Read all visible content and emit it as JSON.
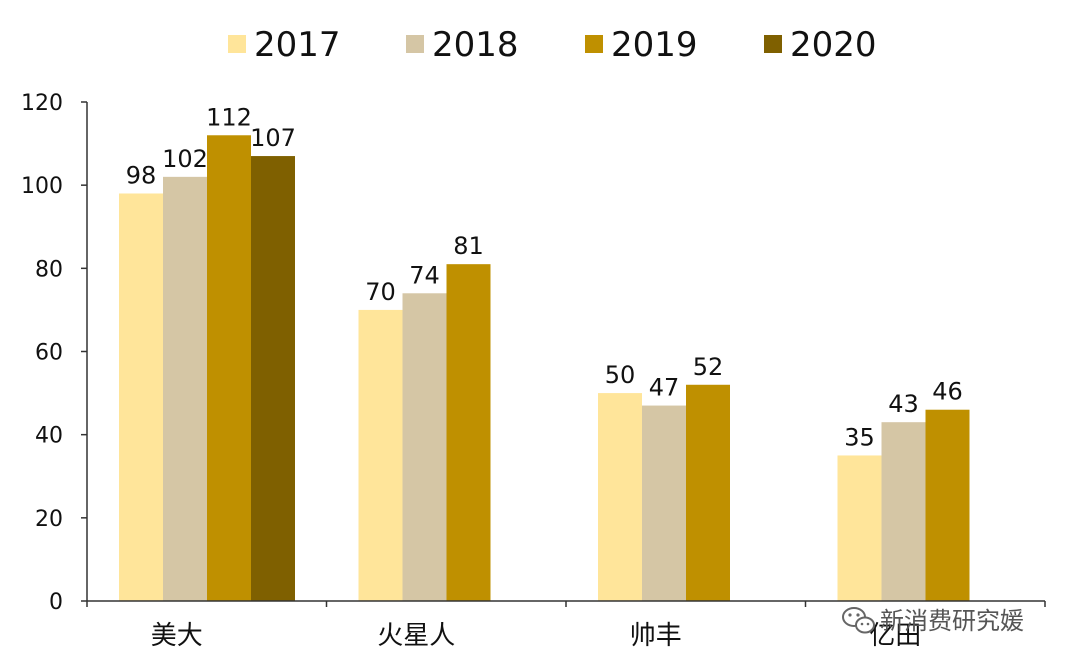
{
  "chart_data": {
    "type": "bar",
    "categories": [
      "美大",
      "火星人",
      "帅丰",
      "亿田"
    ],
    "series": [
      {
        "name": "2017",
        "color": "#FFE59A",
        "values": [
          98,
          70,
          50,
          35
        ]
      },
      {
        "name": "2018",
        "color": "#D5C6A5",
        "values": [
          102,
          74,
          47,
          43
        ]
      },
      {
        "name": "2019",
        "color": "#BF9000",
        "values": [
          112,
          81,
          52,
          46
        ]
      },
      {
        "name": "2020",
        "color": "#7F6000",
        "values": [
          107,
          null,
          null,
          null
        ]
      }
    ],
    "ylim": [
      0,
      120
    ],
    "yticks": [
      0,
      20,
      40,
      60,
      80,
      100,
      120
    ],
    "title": "",
    "xlabel": "",
    "ylabel": "",
    "legend": "top",
    "grid": false
  },
  "watermark": {
    "text": "新消费研究媛",
    "icon": "wechat-icon"
  }
}
